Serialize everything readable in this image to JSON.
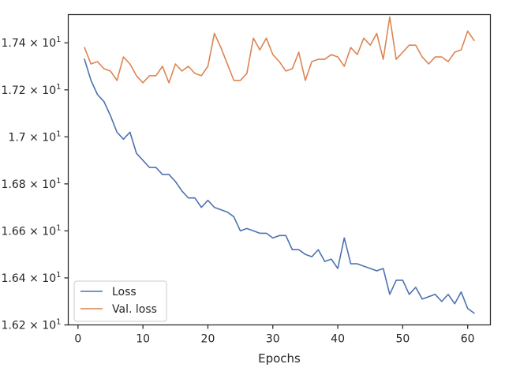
{
  "chart_data": {
    "type": "line",
    "title": "",
    "xlabel": "Epochs",
    "ylabel": "",
    "xlim": [
      -1.5,
      63.5
    ],
    "ylim": [
      16.2,
      17.52
    ],
    "xticks": [
      0,
      10,
      20,
      30,
      40,
      50,
      60
    ],
    "xtick_labels": [
      "0",
      "10",
      "20",
      "30",
      "40",
      "50",
      "60"
    ],
    "yticks": [
      16.2,
      16.4,
      16.6,
      16.8,
      17.0,
      17.2,
      17.4
    ],
    "ytick_labels": [
      "1.62 × 10¹",
      "1.64 × 10¹",
      "1.66 × 10¹",
      "1.68 × 10¹",
      "1.7 × 10¹",
      "1.72 × 10¹",
      "1.74 × 10¹"
    ],
    "ytick_parts": [
      {
        "mant": "1.62",
        "exp": "1"
      },
      {
        "mant": "1.64",
        "exp": "1"
      },
      {
        "mant": "1.66",
        "exp": "1"
      },
      {
        "mant": "1.68",
        "exp": "1"
      },
      {
        "mant": "1.7",
        "exp": "1"
      },
      {
        "mant": "1.72",
        "exp": "1"
      },
      {
        "mant": "1.74",
        "exp": "1"
      }
    ],
    "grid": false,
    "legend_position": "lower-left",
    "x": [
      1,
      2,
      3,
      4,
      5,
      6,
      7,
      8,
      9,
      10,
      11,
      12,
      13,
      14,
      15,
      16,
      17,
      18,
      19,
      20,
      21,
      22,
      23,
      24,
      25,
      26,
      27,
      28,
      29,
      30,
      31,
      32,
      33,
      34,
      35,
      36,
      37,
      38,
      39,
      40,
      41,
      42,
      43,
      44,
      45,
      46,
      47,
      48,
      49,
      50,
      51,
      52,
      53,
      54,
      55,
      56,
      57,
      58,
      59,
      60,
      61
    ],
    "series": [
      {
        "name": "Loss",
        "color": "#4c72b0",
        "values": [
          17.33,
          17.24,
          17.18,
          17.15,
          17.09,
          17.02,
          16.99,
          17.02,
          16.93,
          16.9,
          16.87,
          16.87,
          16.84,
          16.84,
          16.81,
          16.77,
          16.74,
          16.74,
          16.7,
          16.73,
          16.7,
          16.69,
          16.68,
          16.66,
          16.6,
          16.61,
          16.6,
          16.59,
          16.59,
          16.57,
          16.58,
          16.58,
          16.52,
          16.52,
          16.5,
          16.49,
          16.52,
          16.47,
          16.48,
          16.44,
          16.57,
          16.46,
          16.46,
          16.45,
          16.44,
          16.43,
          16.44,
          16.33,
          16.39,
          16.39,
          16.33,
          16.36,
          16.31,
          16.32,
          16.33,
          16.3,
          16.33,
          16.29,
          16.34,
          16.27,
          16.25
        ]
      },
      {
        "name": "Val. loss",
        "color": "#dd8452",
        "values": [
          17.38,
          17.31,
          17.32,
          17.29,
          17.28,
          17.24,
          17.34,
          17.31,
          17.26,
          17.23,
          17.26,
          17.26,
          17.3,
          17.23,
          17.31,
          17.28,
          17.3,
          17.27,
          17.26,
          17.3,
          17.44,
          17.38,
          17.31,
          17.24,
          17.24,
          17.27,
          17.42,
          17.37,
          17.42,
          17.35,
          17.32,
          17.28,
          17.29,
          17.36,
          17.24,
          17.32,
          17.33,
          17.33,
          17.35,
          17.34,
          17.3,
          17.38,
          17.35,
          17.42,
          17.39,
          17.44,
          17.33,
          17.51,
          17.33,
          17.36,
          17.39,
          17.39,
          17.34,
          17.31,
          17.34,
          17.34,
          17.32,
          17.36,
          17.37,
          17.45,
          17.41
        ]
      }
    ]
  }
}
